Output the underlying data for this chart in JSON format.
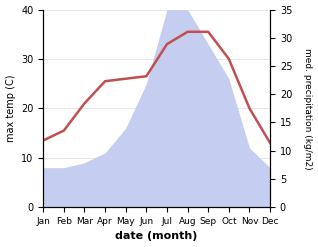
{
  "months": [
    "Jan",
    "Feb",
    "Mar",
    "Apr",
    "May",
    "Jun",
    "Jul",
    "Aug",
    "Sep",
    "Oct",
    "Nov",
    "Dec"
  ],
  "max_temp": [
    13.5,
    15.5,
    21.0,
    25.5,
    26.0,
    26.5,
    33.0,
    35.5,
    35.5,
    30.0,
    20.0,
    13.0
  ],
  "precipitation": [
    8.0,
    8.0,
    9.0,
    11.0,
    16.0,
    25.0,
    40.0,
    40.0,
    33.0,
    26.0,
    12.0,
    8.0
  ],
  "temp_color": "#c0504d",
  "precip_fill_color": "#c5cef0",
  "background_color": "#ffffff",
  "xlabel": "date (month)",
  "ylabel_left": "max temp (C)",
  "ylabel_right": "med. precipitation (kg/m2)",
  "ylim_left": [
    0,
    40
  ],
  "ylim_right": [
    0,
    35
  ],
  "yticks_left": [
    0,
    10,
    20,
    30,
    40
  ],
  "yticks_right": [
    0,
    5,
    10,
    15,
    20,
    25,
    30,
    35
  ]
}
